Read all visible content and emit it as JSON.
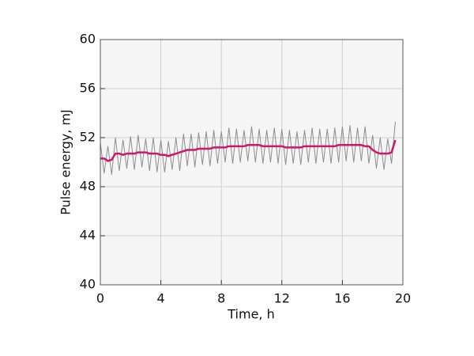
{
  "chart_data": {
    "type": "line",
    "xlabel": "Time, h",
    "ylabel": "Pulse energy, mJ",
    "xlim": [
      0,
      20
    ],
    "ylim": [
      40,
      60
    ],
    "xticks": [
      0,
      4,
      8,
      12,
      16,
      20
    ],
    "yticks": [
      40,
      44,
      48,
      52,
      56,
      60
    ],
    "grid": true,
    "x": [
      0,
      0.25,
      0.5,
      0.75,
      1,
      1.25,
      1.5,
      1.75,
      2,
      2.25,
      2.5,
      2.75,
      3,
      3.25,
      3.5,
      3.75,
      4,
      4.25,
      4.5,
      4.75,
      5,
      5.25,
      5.5,
      5.75,
      6,
      6.25,
      6.5,
      6.75,
      7,
      7.25,
      7.5,
      7.75,
      8,
      8.25,
      8.5,
      8.75,
      9,
      9.25,
      9.5,
      9.75,
      10,
      10.25,
      10.5,
      10.75,
      11,
      11.25,
      11.5,
      11.75,
      12,
      12.25,
      12.5,
      12.75,
      13,
      13.25,
      13.5,
      13.75,
      14,
      14.25,
      14.5,
      14.75,
      15,
      15.25,
      15.5,
      15.75,
      16,
      16.25,
      16.5,
      16.75,
      17,
      17.25,
      17.5,
      17.75,
      18,
      18.25,
      18.5,
      18.75,
      19,
      19.25,
      19.5
    ],
    "series": [
      {
        "color": "#8c8c8c",
        "values": [
          51.6,
          49.1,
          51.3,
          49.0,
          52.0,
          49.3,
          51.8,
          49.5,
          52.1,
          49.4,
          52.2,
          49.6,
          51.9,
          49.3,
          52.0,
          49.2,
          51.8,
          49.2,
          51.7,
          49.4,
          52.0,
          49.3,
          52.3,
          49.7,
          52.3,
          49.6,
          52.4,
          49.8,
          52.5,
          49.7,
          52.6,
          49.9,
          52.5,
          50.0,
          52.8,
          49.9,
          52.7,
          50.0,
          52.6,
          50.1,
          52.9,
          50.0,
          52.7,
          49.9,
          52.6,
          50.0,
          52.8,
          49.9,
          52.7,
          49.8,
          52.6,
          49.9,
          52.5,
          49.8,
          52.6,
          50.0,
          52.8,
          49.9,
          52.7,
          50.0,
          52.7,
          49.9,
          52.8,
          50.0,
          52.9,
          50.1,
          53.0,
          50.0,
          52.8,
          50.1,
          52.9,
          49.9,
          52.2,
          49.5,
          52.0,
          49.4,
          51.9,
          49.9,
          53.3
        ]
      },
      {
        "color": "#d0156e",
        "values": [
          50.3,
          50.3,
          50.1,
          50.2,
          50.7,
          50.7,
          50.6,
          50.7,
          50.7,
          50.7,
          50.8,
          50.8,
          50.8,
          50.7,
          50.7,
          50.7,
          50.6,
          50.6,
          50.5,
          50.6,
          50.7,
          50.8,
          50.9,
          51.0,
          51.0,
          51.0,
          51.1,
          51.1,
          51.1,
          51.1,
          51.2,
          51.2,
          51.2,
          51.2,
          51.3,
          51.3,
          51.3,
          51.3,
          51.3,
          51.4,
          51.4,
          51.4,
          51.4,
          51.3,
          51.3,
          51.3,
          51.3,
          51.3,
          51.3,
          51.2,
          51.2,
          51.2,
          51.2,
          51.2,
          51.3,
          51.3,
          51.3,
          51.3,
          51.3,
          51.3,
          51.3,
          51.3,
          51.3,
          51.4,
          51.4,
          51.4,
          51.4,
          51.4,
          51.4,
          51.4,
          51.3,
          51.3,
          51.0,
          50.8,
          50.7,
          50.7,
          50.7,
          50.8,
          51.8
        ]
      }
    ]
  }
}
